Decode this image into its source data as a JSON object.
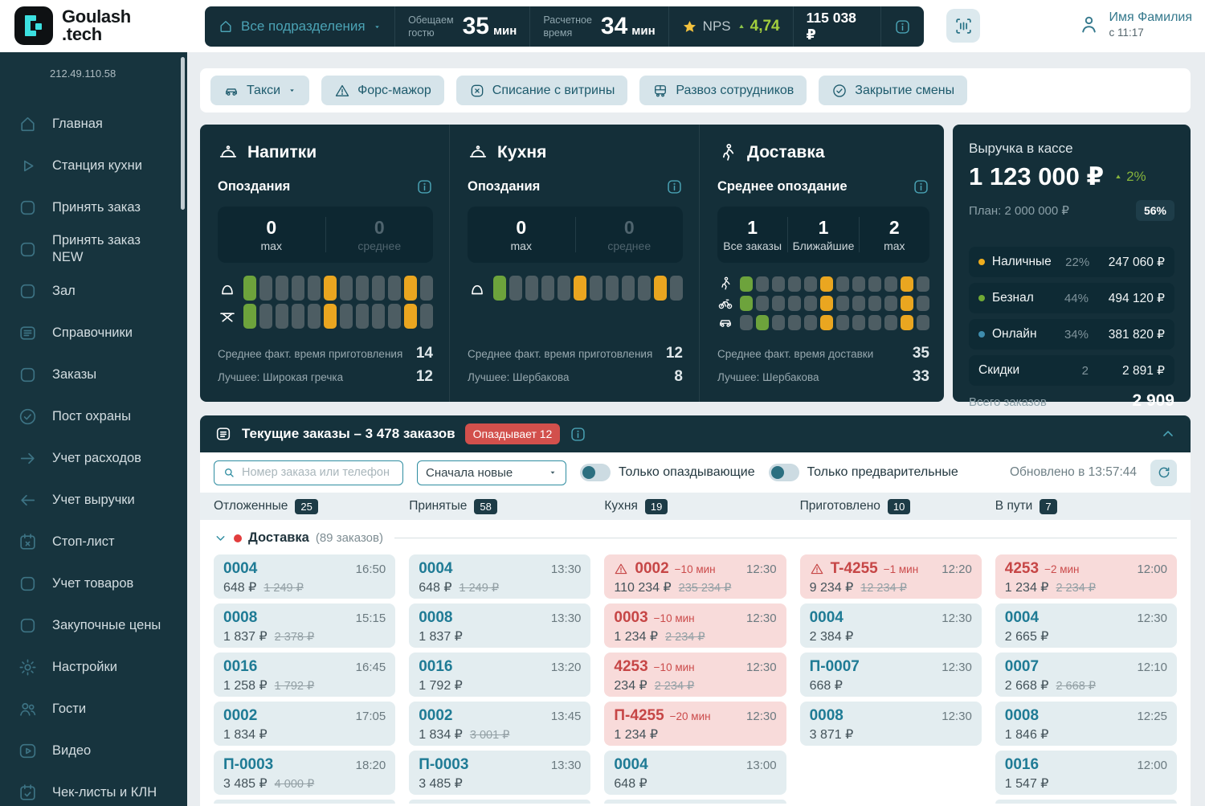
{
  "colors": {
    "accent_teal": "#2f8da1",
    "tile_green": "#6da33c",
    "tile_orange": "#eaa620",
    "tile_gray": "#4d5d63",
    "bar_yellow": "#eead1e",
    "bar_green": "#71aa35",
    "bar_blue": "#3e8cad",
    "red": "#d2504c",
    "nps_green": "#a3cf3d",
    "star_yellow": "#f2c23e"
  },
  "header": {
    "logo_line1": "Goulash",
    "logo_line2": ".tech",
    "division": "Все подразделения",
    "promise_label1": "Обещаем",
    "promise_label2": "гостю",
    "promise_value": "35",
    "promise_unit": "мин",
    "calc_label1": "Расчетное",
    "calc_label2": "время",
    "calc_value": "34",
    "calc_unit": "мин",
    "nps_label": "NPS",
    "nps_value": "4,74",
    "cash": "115 038 ₽",
    "user_name": "Имя Фамилия",
    "user_since": "с 11:17"
  },
  "sidebar": {
    "ip": "212.49.110.58",
    "items": [
      {
        "icon": "home",
        "label": "Главная"
      },
      {
        "icon": "play",
        "label": "Станция кухни"
      },
      {
        "icon": "square",
        "label": "Принять заказ"
      },
      {
        "icon": "square",
        "label": "Принять заказ NEW"
      },
      {
        "icon": "square",
        "label": "Зал"
      },
      {
        "icon": "list",
        "label": "Справочники"
      },
      {
        "icon": "square",
        "label": "Заказы"
      },
      {
        "icon": "check-circle",
        "label": "Пост охраны"
      },
      {
        "icon": "arrow-right",
        "label": "Учет расходов"
      },
      {
        "icon": "arrow-left",
        "label": "Учет выручки"
      },
      {
        "icon": "calendar-x",
        "label": "Стоп-лист"
      },
      {
        "icon": "square",
        "label": "Учет товаров"
      },
      {
        "icon": "square",
        "label": "Закупочные цены"
      },
      {
        "icon": "gear",
        "label": "Настройки"
      },
      {
        "icon": "users",
        "label": "Гости"
      },
      {
        "icon": "video",
        "label": "Видео"
      },
      {
        "icon": "calendar-check",
        "label": "Чек-листы и КЛН"
      }
    ]
  },
  "actions": [
    {
      "icon": "car",
      "label": "Такси",
      "caret": true
    },
    {
      "icon": "warning",
      "label": "Форс-мажор"
    },
    {
      "icon": "x-square",
      "label": "Списание с витрины"
    },
    {
      "icon": "bus",
      "label": "Развоз сотрудников"
    },
    {
      "icon": "check-circle",
      "label": "Закрытие смены"
    }
  ],
  "stations": [
    {
      "icon": "cloche",
      "title": "Напитки",
      "subtitle": "Опоздания",
      "stats": [
        {
          "value": "0",
          "label": "max",
          "muted": false
        },
        {
          "value": "0",
          "label": "среднее",
          "muted": true
        }
      ],
      "rows": [
        {
          "icon": "bag",
          "pattern": "g----o----o-"
        },
        {
          "icon": "table",
          "pattern": "g----o----o-"
        }
      ],
      "metrics": [
        {
          "label": "Среднее факт. время приготовления",
          "value": "14"
        },
        {
          "label": "Лучшее: Широкая гречка",
          "value": "12"
        }
      ]
    },
    {
      "icon": "cloche",
      "title": "Кухня",
      "subtitle": "Опоздания",
      "stats": [
        {
          "value": "0",
          "label": "max",
          "muted": false
        },
        {
          "value": "0",
          "label": "среднее",
          "muted": true
        }
      ],
      "rows": [
        {
          "icon": "bag",
          "pattern": "g----o----o-"
        }
      ],
      "metrics": [
        {
          "label": "Среднее факт. время приготовления",
          "value": "12"
        },
        {
          "label": "Лучшее: Шербакова",
          "value": "8"
        }
      ]
    },
    {
      "icon": "walk",
      "title": "Доставка",
      "subtitle": "Среднее опоздание",
      "stats": [
        {
          "value": "1",
          "label": "Все заказы",
          "muted": false
        },
        {
          "value": "1",
          "label": "Ближайшие",
          "muted": false
        },
        {
          "value": "2",
          "label": "max",
          "muted": false
        }
      ],
      "rows": [
        {
          "icon": "walk",
          "pattern": "g----o----o-"
        },
        {
          "icon": "bike",
          "pattern": "g----o----o-"
        },
        {
          "icon": "car",
          "pattern": "-g---o----o-"
        }
      ],
      "metrics": [
        {
          "label": "Среднее факт. время доставки",
          "value": "35"
        },
        {
          "label": "Лучшее: Шербакова",
          "value": "33"
        }
      ]
    }
  ],
  "revenue": {
    "title": "Выручка в кассе",
    "amount": "1 123 000 ₽",
    "delta": "2%",
    "plan": "План: 2 000 000 ₽",
    "plan_pct": "56%",
    "bar": [
      {
        "color": "#eead1e",
        "width": 12.3
      },
      {
        "color": "#71aa35",
        "width": 24.6
      },
      {
        "color": "#3e8cad",
        "width": 19
      }
    ],
    "rows": [
      {
        "dot": "#eead1e",
        "label": "Наличные",
        "pct": "22%",
        "amount": "247 060 ₽"
      },
      {
        "dot": "#71aa35",
        "label": "Безнал",
        "pct": "44%",
        "amount": "494 120 ₽"
      },
      {
        "dot": "#3e8cad",
        "label": "Онлайн",
        "pct": "34%",
        "amount": "381 820 ₽"
      },
      {
        "dot": "",
        "label": "Скидки",
        "pct": "2",
        "amount": "2 891 ₽"
      }
    ],
    "total_label": "Всего заказов",
    "total_value": "2 909"
  },
  "orders": {
    "title": "Текущие заказы – 3 478 заказов",
    "late_badge": "Опаздывает 12",
    "search_placeholder": "Номер заказа или телефон",
    "sort_value": "Сначала новые",
    "toggle1": "Только опаздывающие",
    "toggle2": "Только предварительные",
    "updated": "Обновлено в 13:57:44",
    "group_label": "Доставка",
    "group_count": "(89 заказов)",
    "columns": [
      {
        "label": "Отложенные",
        "count": "25",
        "partial": true,
        "cards": [
          {
            "id": "0004",
            "time": "16:50",
            "price": "648 ₽",
            "old": "1 249 ₽"
          },
          {
            "id": "0008",
            "time": "15:15",
            "price": "1 837 ₽",
            "old": "2 378 ₽"
          },
          {
            "id": "0016",
            "time": "16:45",
            "price": "1 258 ₽",
            "old": "1 792 ₽"
          },
          {
            "id": "0002",
            "time": "17:05",
            "price": "1 834 ₽"
          },
          {
            "id": "П-0003",
            "time": "18:20",
            "price": "3 485 ₽",
            "old": "4 000 ₽"
          }
        ]
      },
      {
        "label": "Принятые",
        "count": "58",
        "partial": true,
        "cards": [
          {
            "id": "0004",
            "time": "13:30",
            "price": "648 ₽",
            "old": "1 249 ₽"
          },
          {
            "id": "0008",
            "time": "13:30",
            "price": "1 837 ₽"
          },
          {
            "id": "0016",
            "time": "13:20",
            "price": "1 792 ₽"
          },
          {
            "id": "0002",
            "time": "13:45",
            "price": "1 834 ₽",
            "old": "3 001 ₽"
          },
          {
            "id": "П-0003",
            "time": "13:30",
            "price": "3 485 ₽"
          }
        ]
      },
      {
        "label": "Кухня",
        "count": "19",
        "partial": true,
        "cards": [
          {
            "id": "0002",
            "late": "−10 мин",
            "alert": true,
            "pink": true,
            "time": "12:30",
            "price": "110 234 ₽",
            "old": "235 234 ₽"
          },
          {
            "id": "0003",
            "late": "−10 мин",
            "pink": true,
            "time": "12:30",
            "price": "1 234 ₽",
            "old": "2 234 ₽"
          },
          {
            "id": "4253",
            "late": "−10 мин",
            "pink": true,
            "time": "12:30",
            "price": "234 ₽",
            "old": "2 234 ₽"
          },
          {
            "id": "П-4255",
            "late": "−20 мин",
            "pink": true,
            "time": "12:30",
            "price": "1 234 ₽"
          },
          {
            "id": "0004",
            "time": "13:00",
            "price": "648 ₽"
          }
        ]
      },
      {
        "label": "Приготовлено",
        "count": "10",
        "partial": false,
        "cards": [
          {
            "id": "T-4255",
            "late": "−1 мин",
            "alert": true,
            "pink": true,
            "time": "12:20",
            "price": "9 234 ₽",
            "old": "12 234 ₽"
          },
          {
            "id": "0004",
            "time": "12:30",
            "price": "2 384 ₽"
          },
          {
            "id": "П-0007",
            "time": "12:30",
            "price": "668 ₽"
          },
          {
            "id": "0008",
            "time": "12:30",
            "price": "3 871 ₽"
          }
        ]
      },
      {
        "label": "В пути",
        "count": "7",
        "partial": true,
        "cards": [
          {
            "id": "4253",
            "late": "−2 мин",
            "pink": true,
            "time": "12:00",
            "price": "1 234 ₽",
            "old": "2 234 ₽"
          },
          {
            "id": "0004",
            "time": "12:30",
            "price": "2 665 ₽"
          },
          {
            "id": "0007",
            "time": "12:10",
            "price": "2 668 ₽",
            "old": "2 668 ₽"
          },
          {
            "id": "0008",
            "time": "12:25",
            "price": "1 846 ₽"
          },
          {
            "id": "0016",
            "time": "12:00",
            "price": "1 547 ₽"
          }
        ]
      }
    ]
  }
}
